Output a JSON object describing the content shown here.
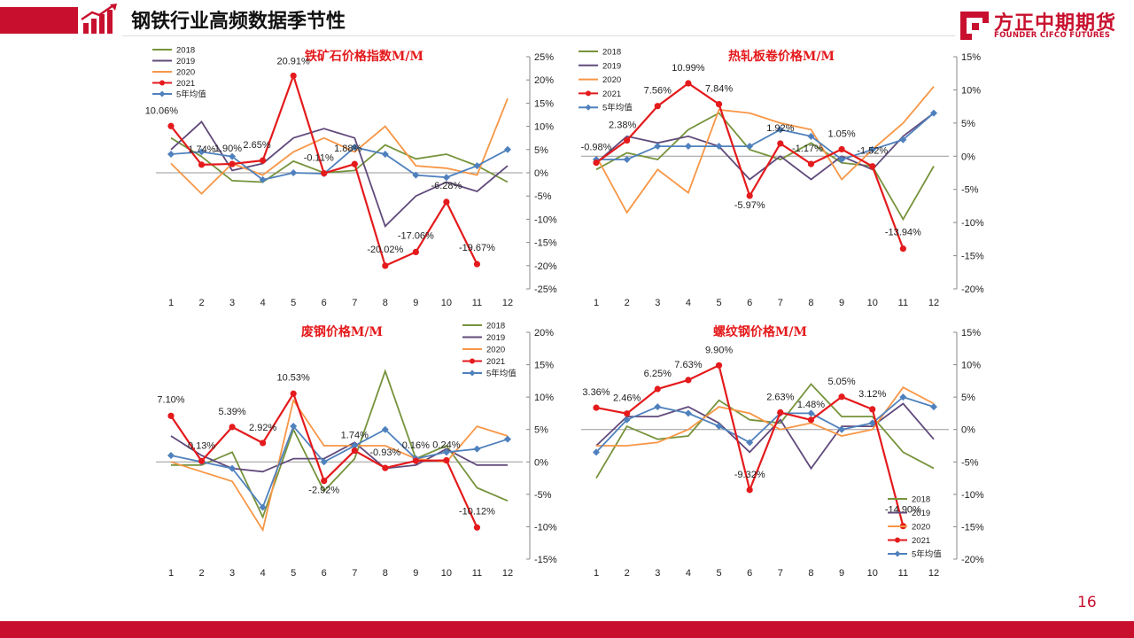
{
  "header": {
    "title": "钢铁行业高频数据季节性"
  },
  "logo": {
    "cn": "方正中期期货",
    "en": "FOUNDER CIFCO FUTURES"
  },
  "page_number": "16",
  "colors": {
    "2018": "#77933c",
    "2019": "#604a7b",
    "2020": "#f79646",
    "2021": "#e41a1c",
    "avg5": "#4f81bd",
    "brand": "#c8102e"
  },
  "chart_data": [
    {
      "type": "line",
      "title": "铁矿石价格指数M/M",
      "categories": [
        "1",
        "2",
        "3",
        "4",
        "5",
        "6",
        "7",
        "8",
        "9",
        "10",
        "11",
        "12"
      ],
      "ylim": [
        -25,
        25
      ],
      "yticks": [
        -25,
        -20,
        -15,
        -10,
        -5,
        0,
        5,
        10,
        15,
        20,
        25
      ],
      "ytick_labels": [
        "-25%",
        "-20%",
        "-15%",
        "-10%",
        "-5%",
        "0%",
        "5%",
        "10%",
        "15%",
        "20%",
        "25%"
      ],
      "series": [
        {
          "name": "2018",
          "values": [
            7.5,
            3.5,
            -1.7,
            -2.0,
            2.5,
            0.0,
            0.5,
            6.0,
            3.0,
            4.0,
            1.5,
            -2.0
          ]
        },
        {
          "name": "2019",
          "values": [
            5.0,
            11.0,
            0.5,
            2.0,
            7.5,
            9.5,
            7.5,
            -11.5,
            -5.0,
            -2.0,
            -4.0,
            1.5
          ]
        },
        {
          "name": "2020",
          "values": [
            2.0,
            -4.5,
            2.0,
            -0.5,
            4.5,
            7.5,
            4.5,
            10.0,
            1.5,
            1.0,
            -0.5,
            16.0
          ]
        },
        {
          "name": "2021",
          "values": [
            10.06,
            1.74,
            1.9,
            2.65,
            20.91,
            -0.11,
            1.88,
            -20.02,
            -17.06,
            -6.28,
            -19.67,
            null
          ],
          "labels": [
            "10.06%",
            "1.74%",
            "1.90%",
            "2.65%",
            "20.91%",
            "-0.11%",
            "1.88%",
            "-20.02%",
            "-17.06%",
            "-6.28%",
            "-19.67%",
            ""
          ]
        },
        {
          "name": "5年均值",
          "values": [
            4.0,
            4.5,
            3.5,
            -1.5,
            0.0,
            -0.2,
            5.5,
            4.0,
            -0.5,
            -1.0,
            1.5,
            5.0
          ]
        }
      ]
    },
    {
      "type": "line",
      "title": "热轧板卷价格M/M",
      "categories": [
        "1",
        "2",
        "3",
        "4",
        "5",
        "6",
        "7",
        "8",
        "9",
        "10",
        "11",
        "12"
      ],
      "ylim": [
        -20,
        15
      ],
      "yticks": [
        -20,
        -15,
        -10,
        -5,
        0,
        5,
        10,
        15
      ],
      "ytick_labels": [
        "-20%",
        "-15%",
        "-10%",
        "-5%",
        "0%",
        "5%",
        "10%",
        "15%"
      ],
      "series": [
        {
          "name": "2018",
          "values": [
            -2.0,
            0.5,
            -0.5,
            4.0,
            6.5,
            1.0,
            -0.5,
            2.0,
            -1.0,
            -1.5,
            -9.5,
            -1.5
          ]
        },
        {
          "name": "2019",
          "values": [
            -1.0,
            3.0,
            2.0,
            3.0,
            1.5,
            -3.5,
            0.0,
            -3.5,
            0.0,
            -2.0,
            3.0,
            6.5
          ]
        },
        {
          "name": "2020",
          "values": [
            0.0,
            -8.5,
            -2.0,
            -5.5,
            7.0,
            6.5,
            5.0,
            4.0,
            -3.5,
            1.0,
            5.0,
            10.5
          ]
        },
        {
          "name": "2021",
          "values": [
            -0.98,
            2.38,
            7.56,
            10.99,
            7.84,
            -5.97,
            1.92,
            -1.17,
            1.05,
            -1.52,
            -13.94,
            null
          ],
          "labels": [
            "-0.98%",
            "2.38%",
            "7.56%",
            "10.99%",
            "7.84%",
            "-5.97%",
            "1.92%",
            "-1.17%",
            "1.05%",
            "-1.52%",
            "-13.94%",
            ""
          ]
        },
        {
          "name": "5年均值",
          "values": [
            -0.5,
            -0.5,
            1.5,
            1.5,
            1.5,
            1.5,
            4.0,
            3.0,
            -0.5,
            1.0,
            2.5,
            6.5
          ]
        }
      ]
    },
    {
      "type": "line",
      "title": "废钢价格M/M",
      "categories": [
        "1",
        "2",
        "3",
        "4",
        "5",
        "6",
        "7",
        "8",
        "9",
        "10",
        "11",
        "12"
      ],
      "ylim": [
        -15,
        20
      ],
      "yticks": [
        -15,
        -10,
        -5,
        0,
        5,
        10,
        15,
        20
      ],
      "ytick_labels": [
        "-15%",
        "-10%",
        "-5%",
        "0%",
        "5%",
        "10%",
        "15%",
        "20%"
      ],
      "series": [
        {
          "name": "2018",
          "values": [
            -0.5,
            -0.5,
            1.5,
            -8.5,
            5.0,
            -4.5,
            0.5,
            14.0,
            0.5,
            2.5,
            -4.0,
            -6.0
          ]
        },
        {
          "name": "2019",
          "values": [
            4.0,
            1.0,
            -1.0,
            -1.5,
            0.5,
            0.5,
            3.0,
            -1.0,
            -0.5,
            2.0,
            -0.5,
            -0.5
          ]
        },
        {
          "name": "2020",
          "values": [
            0.0,
            -1.5,
            -3.0,
            -10.5,
            9.5,
            2.5,
            2.5,
            2.5,
            0.5,
            0.0,
            5.5,
            4.0
          ]
        },
        {
          "name": "2021",
          "values": [
            7.1,
            0.13,
            5.39,
            2.92,
            10.53,
            -2.92,
            1.74,
            -0.93,
            0.16,
            0.24,
            -10.12,
            null
          ],
          "labels": [
            "7.10%",
            "0.13%",
            "5.39%",
            "2.92%",
            "10.53%",
            "-2.92%",
            "1.74%",
            "-0.93%",
            "0.16%",
            "0.24%",
            "-10.12%",
            ""
          ]
        },
        {
          "name": "5年均值",
          "values": [
            1.0,
            0.0,
            -1.0,
            -7.0,
            5.5,
            0.0,
            2.5,
            5.0,
            0.5,
            1.5,
            2.0,
            3.5
          ]
        }
      ]
    },
    {
      "type": "line",
      "title": "螺纹钢价格M/M",
      "categories": [
        "1",
        "2",
        "3",
        "4",
        "5",
        "6",
        "7",
        "8",
        "9",
        "10",
        "11",
        "12"
      ],
      "ylim": [
        -20,
        15
      ],
      "yticks": [
        -20,
        -15,
        -10,
        -5,
        0,
        5,
        10,
        15
      ],
      "ytick_labels": [
        "-20%",
        "-15%",
        "-10%",
        "-5%",
        "0%",
        "5%",
        "10%",
        "15%"
      ],
      "series": [
        {
          "name": "2018",
          "values": [
            -7.5,
            0.5,
            -1.5,
            -1.0,
            4.5,
            1.5,
            1.0,
            7.0,
            2.0,
            2.0,
            -3.5,
            -6.0
          ]
        },
        {
          "name": "2019",
          "values": [
            -2.5,
            2.0,
            2.0,
            3.5,
            1.0,
            -3.5,
            1.5,
            -6.0,
            0.5,
            0.5,
            4.0,
            -1.5
          ]
        },
        {
          "name": "2020",
          "values": [
            -2.5,
            -2.5,
            -2.0,
            0.0,
            3.5,
            2.5,
            0.0,
            1.0,
            -1.0,
            0.0,
            6.5,
            4.0
          ]
        },
        {
          "name": "2021",
          "values": [
            3.36,
            2.46,
            6.25,
            7.63,
            9.9,
            -9.32,
            2.63,
            1.48,
            5.05,
            3.12,
            -14.9,
            null
          ],
          "labels": [
            "3.36%",
            "2.46%",
            "6.25%",
            "7.63%",
            "9.90%",
            "-9.32%",
            "2.63%",
            "1.48%",
            "5.05%",
            "3.12%",
            "-14.90%",
            ""
          ]
        },
        {
          "name": "5年均值",
          "values": [
            -3.5,
            1.5,
            3.5,
            2.5,
            0.5,
            -2.0,
            2.5,
            2.5,
            0.0,
            1.0,
            5.0,
            3.5
          ]
        }
      ]
    }
  ]
}
